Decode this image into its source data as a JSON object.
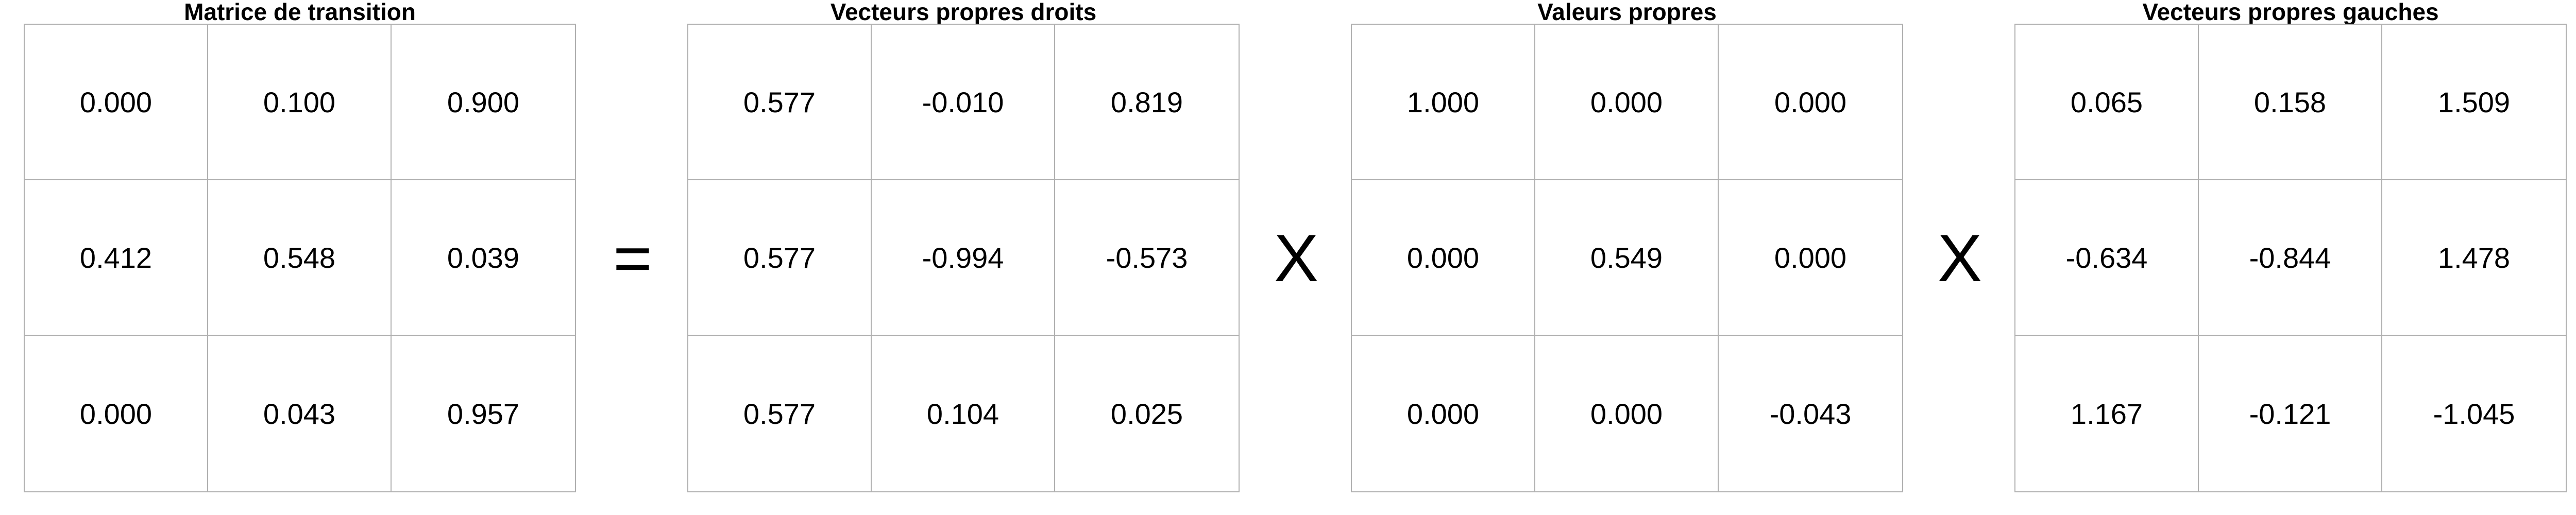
{
  "matrices": [
    {
      "title": "Matrice de transition",
      "rows": [
        [
          "0.000",
          "0.100",
          "0.900"
        ],
        [
          "0.412",
          "0.548",
          "0.039"
        ],
        [
          "0.000",
          "0.043",
          "0.957"
        ]
      ]
    },
    {
      "title": "Vecteurs propres droits",
      "rows": [
        [
          "0.577",
          "-0.010",
          "0.819"
        ],
        [
          "0.577",
          "-0.994",
          "-0.573"
        ],
        [
          "0.577",
          "0.104",
          "0.025"
        ]
      ]
    },
    {
      "title": "Valeurs propres",
      "rows": [
        [
          "1.000",
          "0.000",
          "0.000"
        ],
        [
          "0.000",
          "0.549",
          "0.000"
        ],
        [
          "0.000",
          "0.000",
          "-0.043"
        ]
      ]
    },
    {
      "title": "Vecteurs propres gauches",
      "rows": [
        [
          "0.065",
          "0.158",
          "1.509"
        ],
        [
          "-0.634",
          "-0.844",
          "1.478"
        ],
        [
          "1.167",
          "-0.121",
          "-1.045"
        ]
      ]
    }
  ],
  "operators": [
    "=",
    "X",
    "X"
  ]
}
